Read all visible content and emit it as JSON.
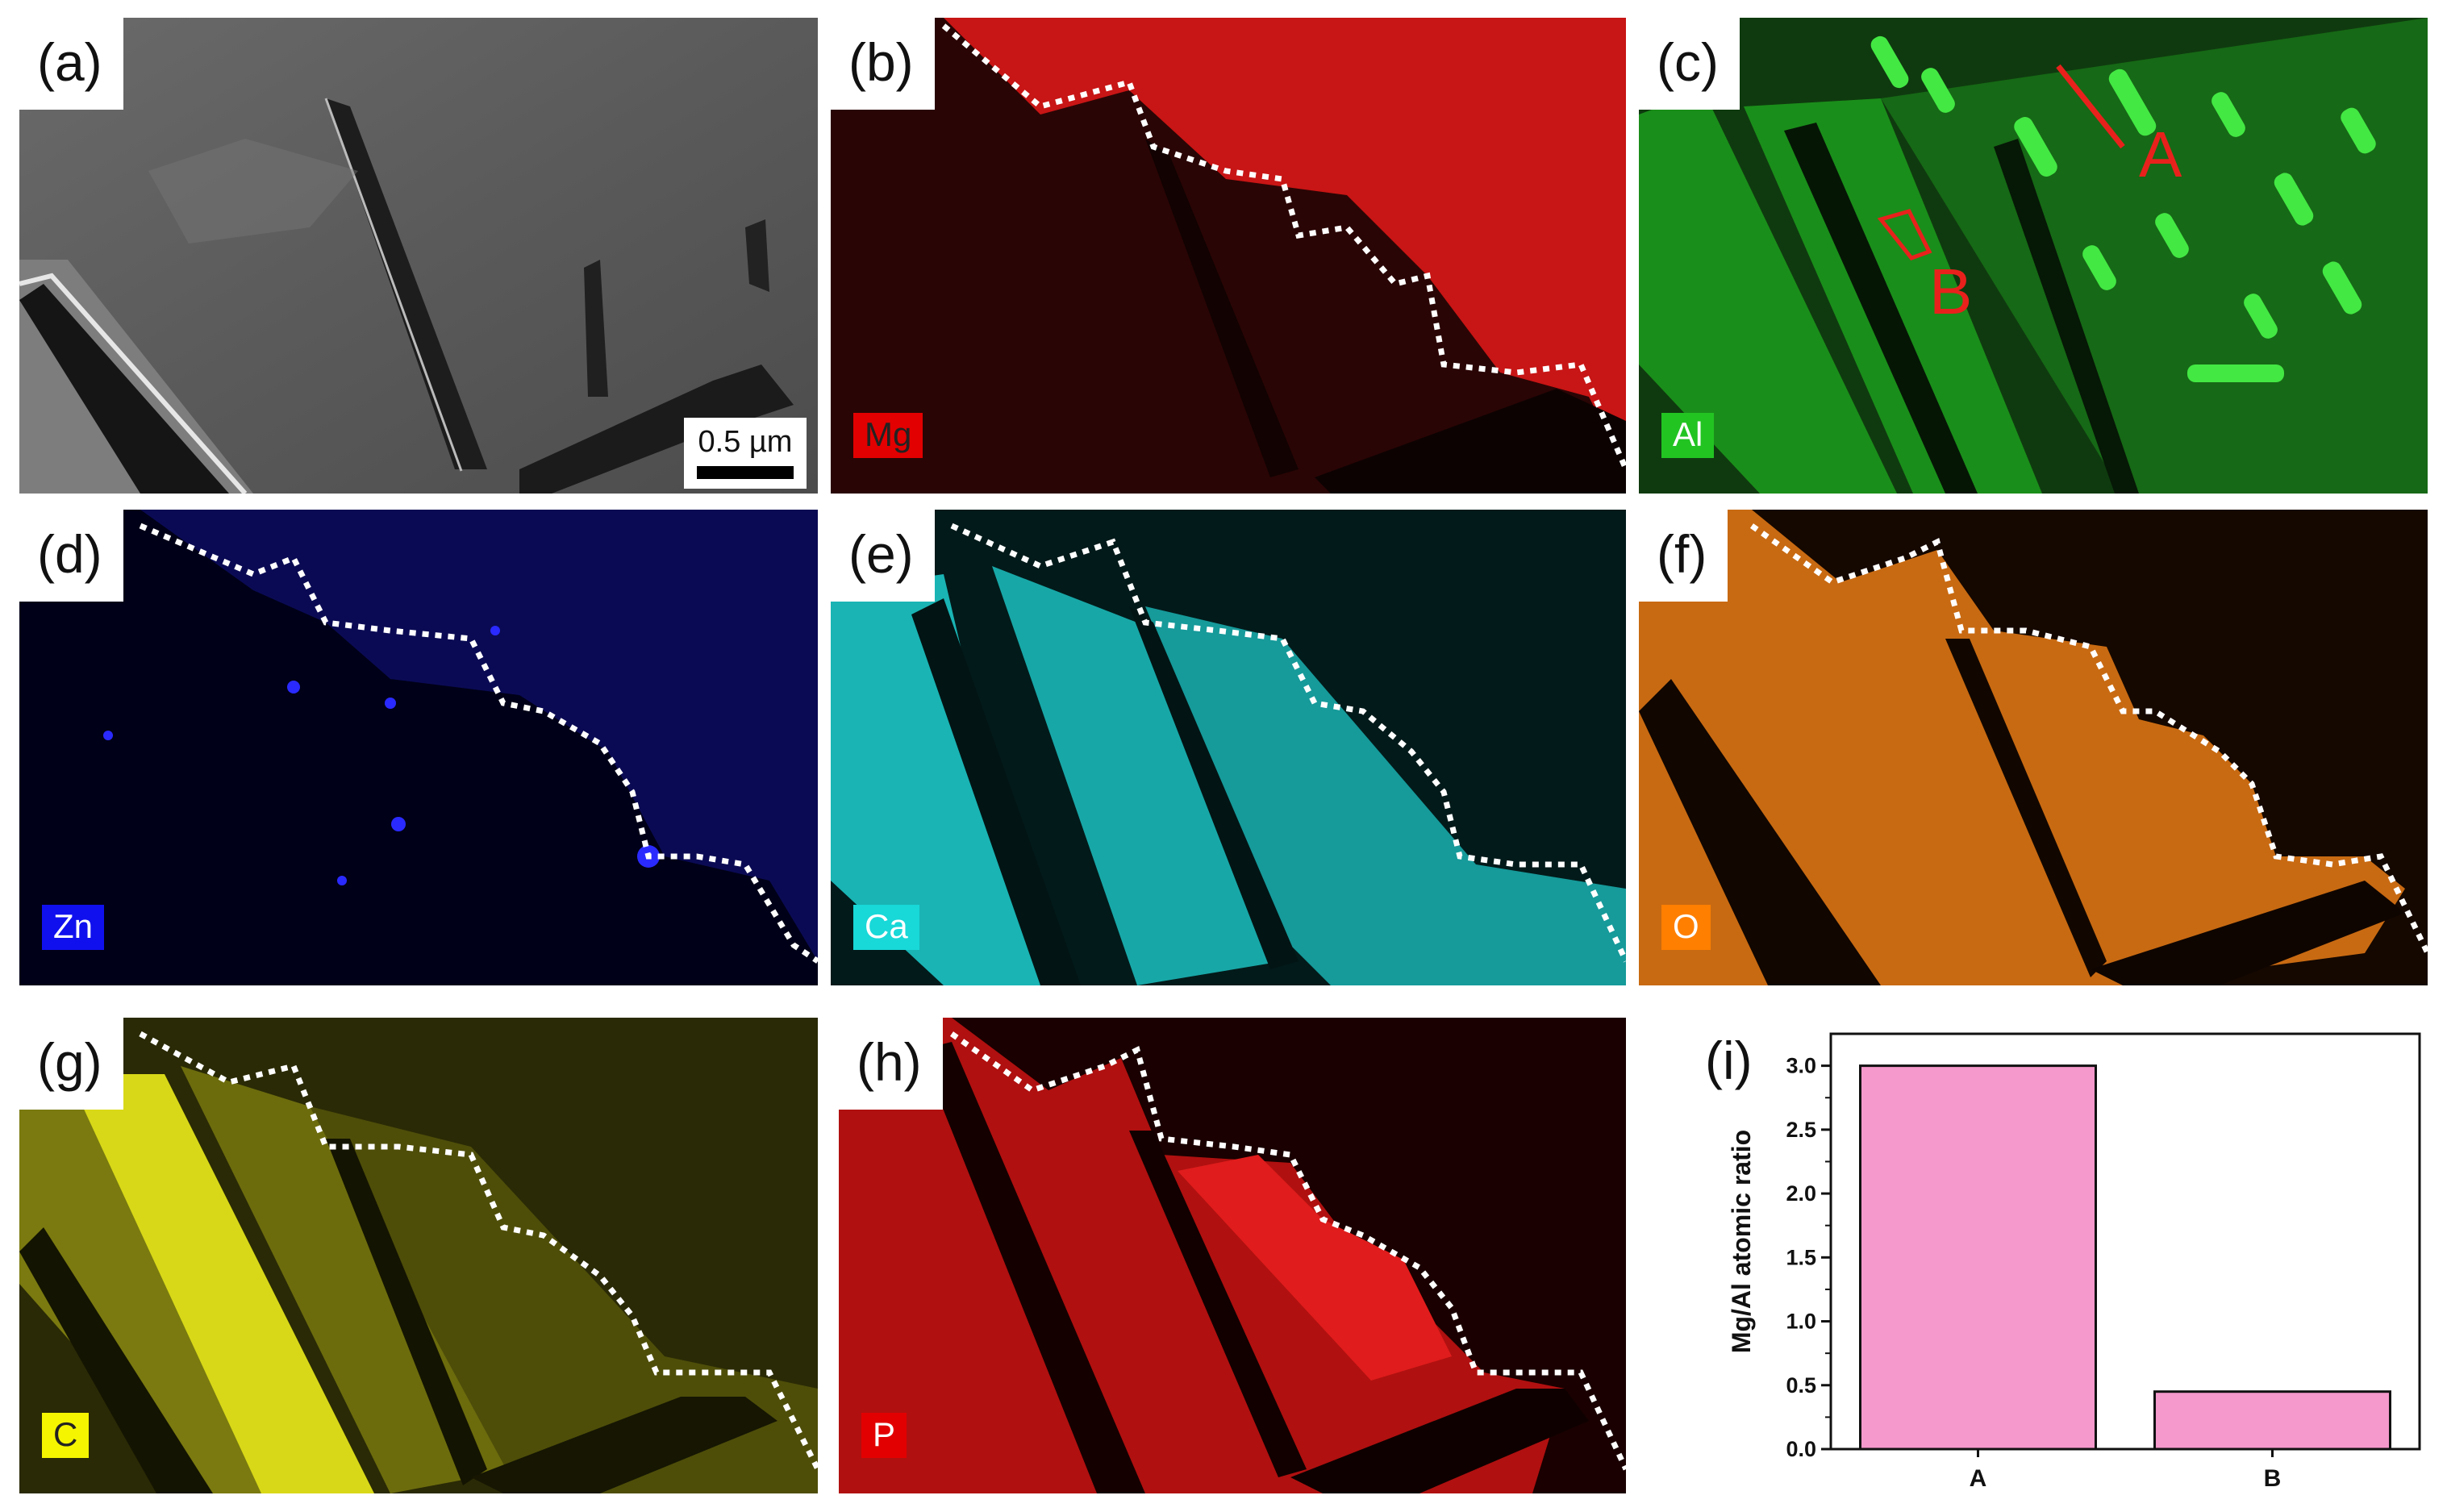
{
  "panels": [
    {
      "id": "a",
      "label": "(a)",
      "element": "",
      "scale": "0.5 µm"
    },
    {
      "id": "b",
      "label": "(b)",
      "element": "Mg",
      "tag_bg": "#e20000",
      "tag_fg": "#222222"
    },
    {
      "id": "c",
      "label": "(c)",
      "element": "Al",
      "tag_bg": "#22c422",
      "tag_fg": "#ffffff",
      "markers": [
        "A",
        "B"
      ]
    },
    {
      "id": "d",
      "label": "(d)",
      "element": "Zn",
      "tag_bg": "#1010ee",
      "tag_fg": "#ffffff"
    },
    {
      "id": "e",
      "label": "(e)",
      "element": "Ca",
      "tag_bg": "#18d8d8",
      "tag_fg": "#ffffff"
    },
    {
      "id": "f",
      "label": "(f)",
      "element": "O",
      "tag_bg": "#ff7f00",
      "tag_fg": "#ffffff"
    },
    {
      "id": "g",
      "label": "(g)",
      "element": "C",
      "tag_bg": "#f5f500",
      "tag_fg": "#222222"
    },
    {
      "id": "h",
      "label": "(h)",
      "element": "P",
      "tag_bg": "#e20000",
      "tag_fg": "#ffffff"
    }
  ],
  "map_colors": {
    "Mg": "#d21a1a",
    "Al": "#1faa1f",
    "Zn": "#1a1ab0",
    "Ca": "#1fc7c7",
    "O": "#ff8c1a",
    "C": "#c8c80a",
    "P": "#d81616"
  },
  "chart_panel": {
    "label": "(i)"
  },
  "chart_data": {
    "type": "bar",
    "categories": [
      "A",
      "B"
    ],
    "values": [
      3.0,
      0.45
    ],
    "ylabel": "Mg/Al atomic ratio",
    "xlabel": "",
    "ylim": [
      0,
      3.25
    ],
    "yticks": [
      "0.0",
      "0.5",
      "1.0",
      "1.5",
      "2.0",
      "2.5",
      "3.0"
    ],
    "bar_color": "#f598cc",
    "grid": false
  }
}
